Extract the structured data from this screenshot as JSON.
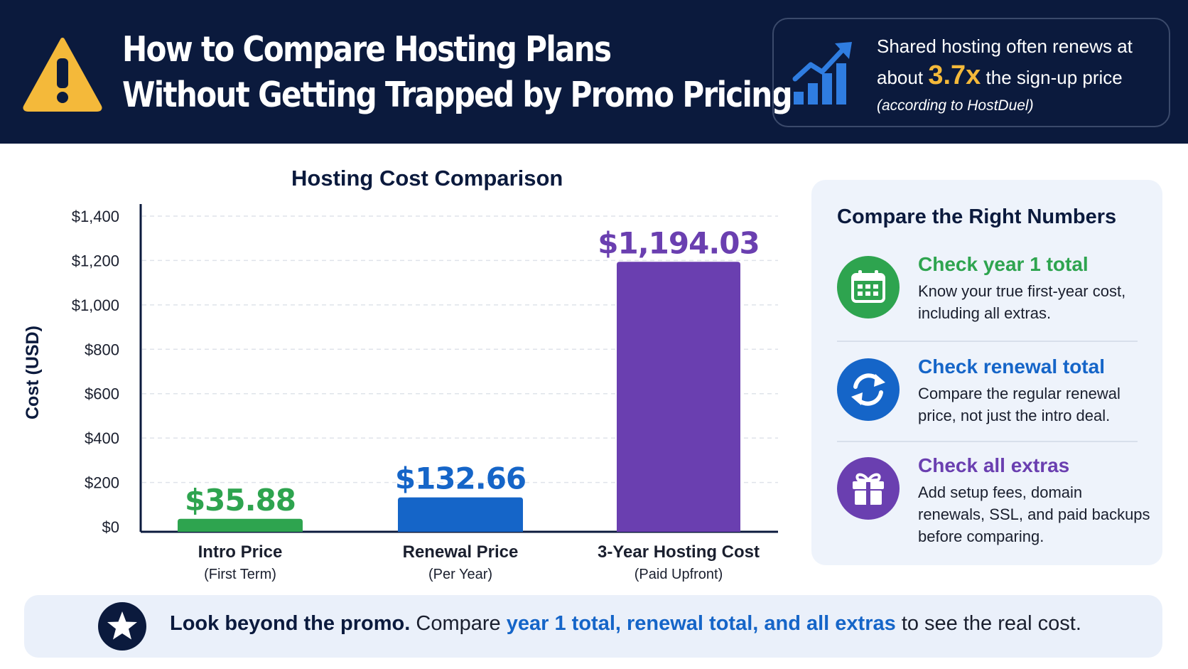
{
  "header": {
    "title_line1": "How to Compare Hosting Plans",
    "title_line2": "Without Getting Trapped by Promo Pricing",
    "warning_icon": "warning-triangle-icon",
    "callout": {
      "icon": "growth-chart-icon",
      "line1": "Shared hosting often renews at",
      "line2_pre": "about",
      "multiplier": "3.7x",
      "line2_post": "the sign-up price",
      "source": "(according to HostDuel)",
      "accent_color": "#f4b93a"
    }
  },
  "chart_data": {
    "type": "bar",
    "title": "Hosting Cost Comparison",
    "ylabel": "Cost (USD)",
    "xlabel": "",
    "ylim": [
      0,
      1400
    ],
    "yticks": [
      0,
      200,
      400,
      600,
      800,
      1000,
      1200,
      1400
    ],
    "ytick_labels": [
      "$0",
      "$200",
      "$400",
      "$600",
      "$800",
      "$1,000",
      "$1,200",
      "$1,400"
    ],
    "grid": "horizontal-dashed",
    "categories": [
      "Intro Price",
      "Renewal Price",
      "3-Year Hosting Cost"
    ],
    "sublabels": [
      "(First Term)",
      "(Per Year)",
      "(Paid Upfront)"
    ],
    "values": [
      35.88,
      132.66,
      1194.03
    ],
    "value_labels": [
      "$35.88",
      "$132.66",
      "$1,194.03"
    ],
    "colors": [
      "#2ea44f",
      "#1565c8",
      "#6a3fb0"
    ]
  },
  "panel": {
    "title": "Compare the Right Numbers",
    "items": [
      {
        "icon": "calendar-icon",
        "title": "Check year 1 total",
        "desc": "Know your true first-year cost, including all extras.",
        "color": "#2ea44f"
      },
      {
        "icon": "refresh-icon",
        "title": "Check renewal total",
        "desc": "Compare the regular renewal price, not just the intro deal.",
        "color": "#1565c8"
      },
      {
        "icon": "gift-icon",
        "title": "Check all extras",
        "desc": "Add setup fees, domain renewals, SSL, and paid backups before comparing.",
        "color": "#6a3fb0"
      }
    ]
  },
  "footer": {
    "icon": "star-icon",
    "bold": "Look beyond the promo.",
    "pre": "Compare",
    "highlight": "year 1 total, renewal total, and all extras",
    "post": "to see the real cost."
  }
}
